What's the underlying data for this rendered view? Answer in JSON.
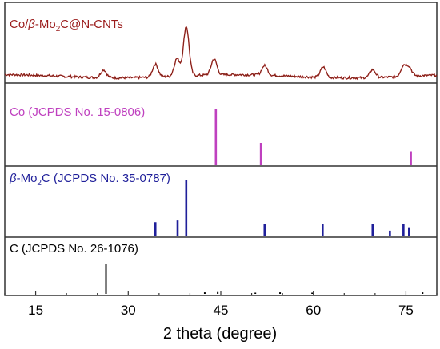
{
  "chart_data": {
    "type": "line",
    "xlabel": "2 theta (degree)",
    "xlim": [
      10,
      80
    ],
    "xticks": [
      15,
      30,
      45,
      60,
      75
    ],
    "panels": [
      {
        "name": "Co/β-Mo2C@N-CNTs",
        "label_parts": {
          "p1": "Co/",
          "beta": "β",
          "p2": "-Mo",
          "sub": "2",
          "p3": "C@N-CNTs"
        },
        "color": "#b22222",
        "kind": "pattern",
        "peaks": [
          {
            "x": 26.0,
            "h": 0.1
          },
          {
            "x": 34.4,
            "h": 0.16
          },
          {
            "x": 37.9,
            "h": 0.22
          },
          {
            "x": 39.4,
            "h": 0.62
          },
          {
            "x": 43.9,
            "h": 0.2
          },
          {
            "x": 52.1,
            "h": 0.12
          },
          {
            "x": 61.6,
            "h": 0.13
          },
          {
            "x": 69.6,
            "h": 0.1
          },
          {
            "x": 74.6,
            "h": 0.13
          },
          {
            "x": 75.5,
            "h": 0.11
          }
        ]
      },
      {
        "name": "Co (JCPDS No. 15-0806)",
        "label": "Co (JCPDS No. 15-0806)",
        "color": "#bf40bf",
        "kind": "sticks",
        "sticks": [
          {
            "x": 44.2,
            "h": 1.0
          },
          {
            "x": 51.5,
            "h": 0.4
          },
          {
            "x": 75.8,
            "h": 0.25
          }
        ]
      },
      {
        "name": "β-Mo2C (JCPDS No. 35-0787)",
        "label_parts": {
          "beta": "β",
          "p2": "-Mo",
          "sub": "2",
          "p3": "C (JCPDS No. 35-0787)"
        },
        "color": "#1f1f9a",
        "kind": "sticks",
        "sticks": [
          {
            "x": 34.4,
            "h": 0.25
          },
          {
            "x": 38.0,
            "h": 0.28
          },
          {
            "x": 39.4,
            "h": 1.0
          },
          {
            "x": 52.1,
            "h": 0.22
          },
          {
            "x": 61.5,
            "h": 0.22
          },
          {
            "x": 69.6,
            "h": 0.22
          },
          {
            "x": 72.4,
            "h": 0.1
          },
          {
            "x": 74.6,
            "h": 0.22
          },
          {
            "x": 75.5,
            "h": 0.16
          }
        ]
      },
      {
        "name": "C (JCPDS No. 26-1076)",
        "label": "C (JCPDS No. 26-1076)",
        "color": "#000000",
        "kind": "sticks",
        "sticks": [
          {
            "x": 26.4,
            "h": 1.0
          },
          {
            "x": 42.4,
            "h": 0.05
          },
          {
            "x": 44.5,
            "h": 0.06
          },
          {
            "x": 50.6,
            "h": 0.04
          },
          {
            "x": 54.6,
            "h": 0.05
          },
          {
            "x": 59.8,
            "h": 0.04
          },
          {
            "x": 77.7,
            "h": 0.05
          }
        ]
      }
    ]
  }
}
